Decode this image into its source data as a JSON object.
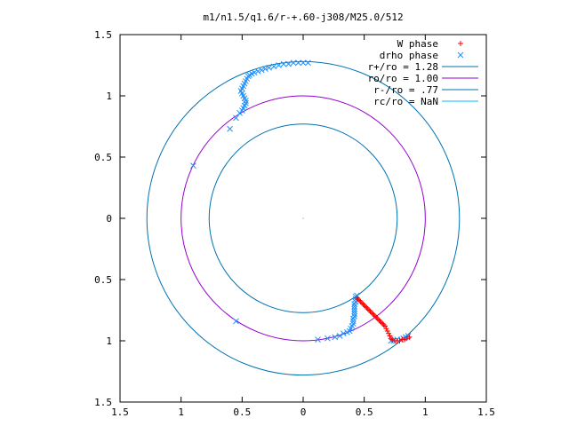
{
  "chart_data": {
    "type": "scatter",
    "title": "m1/n1.5/q1.6/r-+.60-j308/M25.0/512",
    "xlim": [
      -1.5,
      1.5
    ],
    "ylim": [
      -1.5,
      1.5
    ],
    "x_tick_values": [
      -1.5,
      -1,
      -0.5,
      0,
      0.5,
      1,
      1.5
    ],
    "x_tick_labels": [
      "1.5",
      "1",
      "0.5",
      "0",
      "0.5",
      "1",
      "1.5"
    ],
    "y_tick_values": [
      1.5,
      1,
      0.5,
      0,
      -0.5,
      -1,
      -1.5
    ],
    "y_tick_labels": [
      "1.5",
      "1",
      "0.5",
      "0",
      "0.5",
      "1",
      "1.5"
    ],
    "grid": false,
    "legend_position": "top-right",
    "circles": [
      {
        "name": "r+/ro = 1.28",
        "radius": 1.28,
        "color": "#0072b2"
      },
      {
        "name": "ro/ro = 1.00",
        "radius": 1.0,
        "color": "#9400d3"
      },
      {
        "name": "r-/ro = .77",
        "radius": 0.77,
        "color": "#0072b2"
      },
      {
        "name": "rc/ro = NaN",
        "radius": null,
        "color": "#00bfff"
      }
    ],
    "series": [
      {
        "name": "W phase",
        "marker": "+",
        "color": "#ff0000",
        "points": [
          [
            0.44,
            -0.65
          ],
          [
            0.45,
            -0.66
          ],
          [
            0.46,
            -0.67
          ],
          [
            0.47,
            -0.68
          ],
          [
            0.48,
            -0.69
          ],
          [
            0.49,
            -0.7
          ],
          [
            0.5,
            -0.71
          ],
          [
            0.51,
            -0.72
          ],
          [
            0.52,
            -0.73
          ],
          [
            0.53,
            -0.74
          ],
          [
            0.54,
            -0.75
          ],
          [
            0.55,
            -0.76
          ],
          [
            0.56,
            -0.77
          ],
          [
            0.57,
            -0.78
          ],
          [
            0.58,
            -0.79
          ],
          [
            0.59,
            -0.8
          ],
          [
            0.6,
            -0.81
          ],
          [
            0.61,
            -0.82
          ],
          [
            0.62,
            -0.83
          ],
          [
            0.63,
            -0.84
          ],
          [
            0.64,
            -0.85
          ],
          [
            0.65,
            -0.86
          ],
          [
            0.66,
            -0.87
          ],
          [
            0.67,
            -0.88
          ],
          [
            0.68,
            -0.9
          ],
          [
            0.69,
            -0.92
          ],
          [
            0.7,
            -0.94
          ],
          [
            0.71,
            -0.96
          ],
          [
            0.72,
            -0.98
          ],
          [
            0.73,
            -0.99
          ],
          [
            0.75,
            -1.0
          ],
          [
            0.77,
            -1.0
          ],
          [
            0.79,
            -1.0
          ],
          [
            0.81,
            -0.99
          ],
          [
            0.83,
            -0.99
          ],
          [
            0.85,
            -0.98
          ],
          [
            0.87,
            -0.97
          ]
        ]
      },
      {
        "name": "drho phase",
        "marker": "x",
        "color": "#1e90ff",
        "points": [
          [
            0.04,
            1.27
          ],
          [
            0.0,
            1.27
          ],
          [
            -0.04,
            1.27
          ],
          [
            -0.08,
            1.27
          ],
          [
            -0.12,
            1.26
          ],
          [
            -0.16,
            1.26
          ],
          [
            -0.2,
            1.25
          ],
          [
            -0.24,
            1.24
          ],
          [
            -0.28,
            1.23
          ],
          [
            -0.31,
            1.22
          ],
          [
            -0.34,
            1.21
          ],
          [
            -0.37,
            1.2
          ],
          [
            -0.4,
            1.19
          ],
          [
            -0.42,
            1.18
          ],
          [
            -0.44,
            1.17
          ],
          [
            -0.45,
            1.16
          ],
          [
            -0.46,
            1.14
          ],
          [
            -0.47,
            1.12
          ],
          [
            -0.48,
            1.1
          ],
          [
            -0.49,
            1.08
          ],
          [
            -0.5,
            1.06
          ],
          [
            -0.51,
            1.04
          ],
          [
            -0.5,
            1.02
          ],
          [
            -0.49,
            1.0
          ],
          [
            -0.48,
            0.98
          ],
          [
            -0.47,
            0.96
          ],
          [
            -0.47,
            0.94
          ],
          [
            -0.48,
            0.92
          ],
          [
            -0.49,
            0.9
          ],
          [
            -0.5,
            0.88
          ],
          [
            -0.52,
            0.86
          ],
          [
            -0.55,
            0.82
          ],
          [
            -0.6,
            0.73
          ],
          [
            -0.9,
            0.43
          ],
          [
            -0.55,
            -0.84
          ],
          [
            0.12,
            -0.99
          ],
          [
            0.2,
            -0.98
          ],
          [
            0.26,
            -0.97
          ],
          [
            0.3,
            -0.96
          ],
          [
            0.33,
            -0.94
          ],
          [
            0.36,
            -0.93
          ],
          [
            0.38,
            -0.92
          ],
          [
            0.39,
            -0.9
          ],
          [
            0.4,
            -0.88
          ],
          [
            0.41,
            -0.86
          ],
          [
            0.41,
            -0.84
          ],
          [
            0.41,
            -0.82
          ],
          [
            0.42,
            -0.8
          ],
          [
            0.42,
            -0.78
          ],
          [
            0.42,
            -0.76
          ],
          [
            0.42,
            -0.74
          ],
          [
            0.42,
            -0.72
          ],
          [
            0.42,
            -0.7
          ],
          [
            0.43,
            -0.68
          ],
          [
            0.43,
            -0.66
          ],
          [
            0.43,
            -0.64
          ],
          [
            0.44,
            -0.63
          ],
          [
            0.72,
            -1.0
          ],
          [
            0.74,
            -1.0
          ],
          [
            0.77,
            -0.99
          ],
          [
            0.8,
            -0.99
          ],
          [
            0.82,
            -0.98
          ],
          [
            0.84,
            -0.97
          ],
          [
            0.86,
            -0.96
          ]
        ]
      }
    ]
  }
}
